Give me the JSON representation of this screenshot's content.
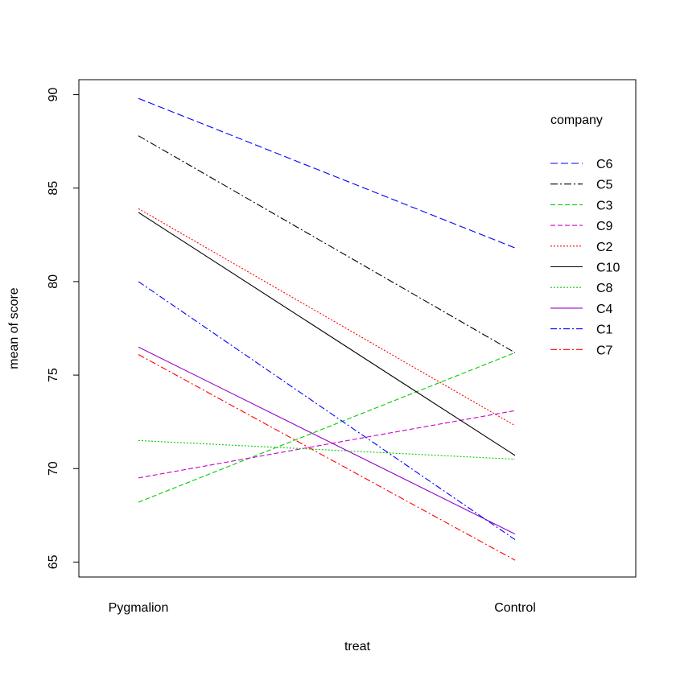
{
  "chart_data": {
    "type": "line",
    "xlabel": "treat",
    "ylabel": "mean of  score",
    "categories": [
      "Pygmalion",
      "Control"
    ],
    "ylim": [
      64.2,
      90.8
    ],
    "yticks": [
      65,
      70,
      75,
      80,
      85,
      90
    ],
    "legend_title": "company",
    "legend_position": "top-right",
    "series": [
      {
        "name": "C6",
        "values": [
          89.8,
          81.8
        ],
        "color": "#0000ff",
        "dash": "9,4"
      },
      {
        "name": "C5",
        "values": [
          87.8,
          76.2
        ],
        "color": "#000000",
        "dash": "9,3,2,3"
      },
      {
        "name": "C3",
        "values": [
          68.2,
          76.2
        ],
        "color": "#00cd00",
        "dash": "6,3"
      },
      {
        "name": "C9",
        "values": [
          69.5,
          73.1
        ],
        "color": "#cc00cc",
        "dash": "6,3"
      },
      {
        "name": "C2",
        "values": [
          83.9,
          72.3
        ],
        "color": "#ff0000",
        "dash": "2,2"
      },
      {
        "name": "C10",
        "values": [
          83.7,
          70.7
        ],
        "color": "#000000",
        "dash": ""
      },
      {
        "name": "C8",
        "values": [
          71.5,
          70.5
        ],
        "color": "#00cd00",
        "dash": "2,2"
      },
      {
        "name": "C4",
        "values": [
          76.5,
          66.5
        ],
        "color": "#9900cc",
        "dash": ""
      },
      {
        "name": "C1",
        "values": [
          80.0,
          66.2
        ],
        "color": "#0000ff",
        "dash": "8,3,2,3"
      },
      {
        "name": "C7",
        "values": [
          76.1,
          65.1
        ],
        "color": "#ff0000",
        "dash": "8,3,2,3"
      }
    ]
  }
}
